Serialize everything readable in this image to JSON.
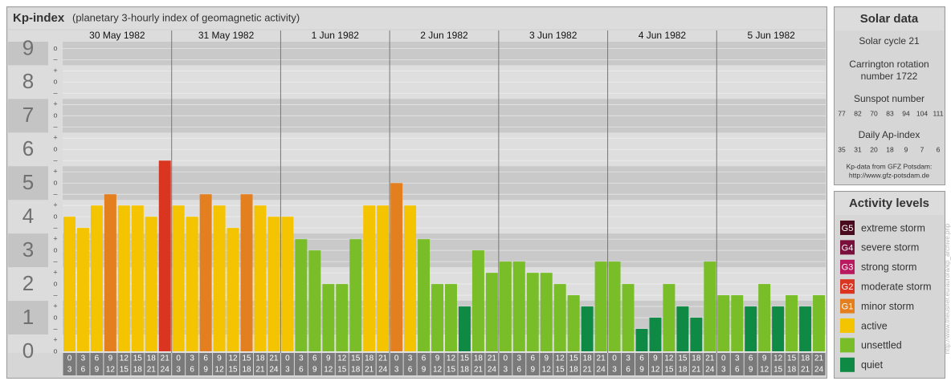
{
  "chart_data": {
    "type": "bar",
    "title": "Kp-index",
    "subtitle": "(planetary 3-hourly index of geomagnetic activity)",
    "days": [
      {
        "label": "30 May 1982",
        "hours": [
          [
            0,
            3
          ],
          [
            3,
            6
          ],
          [
            6,
            9
          ],
          [
            9,
            12
          ],
          [
            12,
            15
          ],
          [
            15,
            18
          ],
          [
            18,
            21
          ],
          [
            21,
            24
          ]
        ]
      },
      {
        "label": "31 May 1982",
        "hours": [
          [
            0,
            3
          ],
          [
            3,
            6
          ],
          [
            6,
            9
          ],
          [
            9,
            12
          ],
          [
            12,
            15
          ],
          [
            15,
            18
          ],
          [
            18,
            21
          ],
          [
            21,
            24
          ]
        ]
      },
      {
        "label": "1 Jun 1982",
        "hours": [
          [
            0,
            3
          ],
          [
            3,
            6
          ],
          [
            6,
            9
          ],
          [
            9,
            12
          ],
          [
            12,
            15
          ],
          [
            15,
            18
          ],
          [
            18,
            21
          ],
          [
            21,
            24
          ]
        ]
      },
      {
        "label": "2 Jun 1982",
        "hours": [
          [
            0,
            3
          ],
          [
            3,
            6
          ],
          [
            6,
            9
          ],
          [
            9,
            12
          ],
          [
            12,
            15
          ],
          [
            15,
            18
          ],
          [
            18,
            21
          ],
          [
            21,
            24
          ]
        ]
      },
      {
        "label": "3 Jun 1982",
        "hours": [
          [
            0,
            3
          ],
          [
            3,
            6
          ],
          [
            6,
            9
          ],
          [
            9,
            12
          ],
          [
            12,
            15
          ],
          [
            15,
            18
          ],
          [
            18,
            21
          ],
          [
            21,
            24
          ]
        ]
      },
      {
        "label": "4 Jun 1982",
        "hours": [
          [
            0,
            3
          ],
          [
            3,
            6
          ],
          [
            6,
            9
          ],
          [
            9,
            12
          ],
          [
            12,
            15
          ],
          [
            15,
            18
          ],
          [
            18,
            21
          ],
          [
            21,
            24
          ]
        ]
      },
      {
        "label": "5 Jun 1982",
        "hours": [
          [
            0,
            3
          ],
          [
            3,
            6
          ],
          [
            6,
            9
          ],
          [
            9,
            12
          ],
          [
            12,
            15
          ],
          [
            15,
            18
          ],
          [
            18,
            21
          ],
          [
            21,
            24
          ]
        ]
      }
    ],
    "values": [
      4,
      3.667,
      4.333,
      4.667,
      4.333,
      4.333,
      4,
      5.667,
      4.333,
      4,
      4.667,
      4.333,
      3.667,
      4.667,
      4.333,
      4,
      4,
      3.333,
      3,
      2,
      2,
      3.333,
      4.333,
      4.333,
      5,
      4.333,
      3.333,
      2,
      2,
      1.333,
      3,
      2.333,
      2.667,
      2.667,
      2.333,
      2.333,
      2,
      1.667,
      1.333,
      2.667,
      2.667,
      2,
      0.667,
      1,
      2,
      1.333,
      1,
      2.667,
      1.667,
      1.667,
      1.333,
      2,
      1.333,
      1.667,
      1.333,
      1.667
    ],
    "colors": [
      "#f5c400",
      "#f5c400",
      "#f5c400",
      "#e47f1f",
      "#f5c400",
      "#f5c400",
      "#f5c400",
      "#d93520",
      "#f5c400",
      "#f5c400",
      "#e47f1f",
      "#f5c400",
      "#f5c400",
      "#e47f1f",
      "#f5c400",
      "#f5c400",
      "#f5c400",
      "#79be28",
      "#79be28",
      "#79be28",
      "#79be28",
      "#79be28",
      "#f5c400",
      "#f5c400",
      "#e47f1f",
      "#f5c400",
      "#79be28",
      "#79be28",
      "#79be28",
      "#0f8a45",
      "#79be28",
      "#79be28",
      "#79be28",
      "#79be28",
      "#79be28",
      "#79be28",
      "#79be28",
      "#79be28",
      "#0f8a45",
      "#79be28",
      "#79be28",
      "#79be28",
      "#0f8a45",
      "#0f8a45",
      "#79be28",
      "#0f8a45",
      "#0f8a45",
      "#79be28",
      "#79be28",
      "#79be28",
      "#0f8a45",
      "#79be28",
      "#0f8a45",
      "#79be28",
      "#0f8a45",
      "#79be28"
    ],
    "ylim": [
      0,
      9.2
    ],
    "yticks": [
      0,
      1,
      2,
      3,
      4,
      5,
      6,
      7,
      8,
      9
    ],
    "minor_yticks": [
      {
        "value": 0,
        "label": "o"
      },
      {
        "value": 0.333,
        "label": "+"
      },
      {
        "value": 0.667,
        "label": "–"
      },
      {
        "value": 1,
        "label": "o"
      },
      {
        "value": 1.333,
        "label": "+"
      },
      {
        "value": 1.667,
        "label": "–"
      },
      {
        "value": 2,
        "label": "o"
      },
      {
        "value": 2.333,
        "label": "+"
      },
      {
        "value": 2.667,
        "label": "–"
      },
      {
        "value": 3,
        "label": "o"
      },
      {
        "value": 3.333,
        "label": "+"
      },
      {
        "value": 3.667,
        "label": "–"
      },
      {
        "value": 4,
        "label": "o"
      },
      {
        "value": 4.333,
        "label": "+"
      },
      {
        "value": 4.667,
        "label": "–"
      },
      {
        "value": 5,
        "label": "o"
      },
      {
        "value": 5.333,
        "label": "+"
      },
      {
        "value": 5.667,
        "label": "–"
      },
      {
        "value": 6,
        "label": "o"
      },
      {
        "value": 6.333,
        "label": "+"
      },
      {
        "value": 6.667,
        "label": "–"
      },
      {
        "value": 7,
        "label": "o"
      },
      {
        "value": 7.333,
        "label": "+"
      },
      {
        "value": 7.667,
        "label": "–"
      },
      {
        "value": 8,
        "label": "o"
      },
      {
        "value": 8.333,
        "label": "+"
      },
      {
        "value": 8.667,
        "label": "–"
      },
      {
        "value": 9,
        "label": "o"
      }
    ],
    "grid": true
  },
  "solar_data": {
    "title": "Solar data",
    "cycle": "Solar cycle 21",
    "carrington": [
      "Carrington rotation",
      "number 1722"
    ],
    "sunspot_label": "Sunspot number",
    "sunspot": [
      77,
      82,
      70,
      83,
      94,
      104,
      111
    ],
    "ap_label": "Daily Ap-index",
    "ap": [
      35,
      31,
      20,
      18,
      9,
      7,
      6
    ],
    "source": [
      "Kp-data from GFZ Potsdam:",
      "http://www.gfz-potsdam.de"
    ]
  },
  "activity_levels": {
    "title": "Activity levels",
    "items": [
      {
        "badge": "G5",
        "label": "extreme storm",
        "color": "#4a0a1e"
      },
      {
        "badge": "G4",
        "label": "severe storm",
        "color": "#7a0f3c"
      },
      {
        "badge": "G3",
        "label": "strong storm",
        "color": "#b8195f"
      },
      {
        "badge": "G2",
        "label": "moderate storm",
        "color": "#d93520"
      },
      {
        "badge": "G1",
        "label": "minor storm",
        "color": "#e47f1f"
      },
      {
        "label": "active",
        "color": "#f5c400"
      },
      {
        "label": "unsettled",
        "color": "#79be28"
      },
      {
        "label": "quiet",
        "color": "#0f8a45"
      }
    ]
  },
  "watermark": "http://www.theusner.eu/aurora/kp_archive.php"
}
